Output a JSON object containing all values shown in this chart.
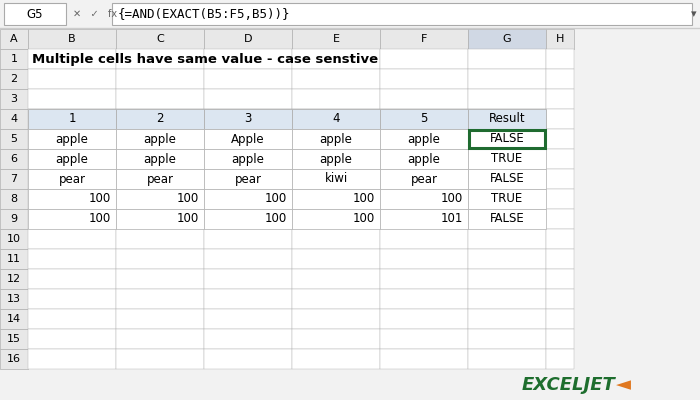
{
  "title": "Multiple cells have same value - case senstive",
  "formula_bar_cell": "G5",
  "formula_bar_formula": "{=AND(EXACT(B5:F5,B5))}",
  "col_headers": [
    "A",
    "B",
    "C",
    "D",
    "E",
    "F",
    "G",
    "H"
  ],
  "row_headers": [
    "1",
    "2",
    "3",
    "4",
    "5",
    "6",
    "7",
    "8",
    "9",
    "10",
    "11",
    "12",
    "13",
    "14",
    "15",
    "16"
  ],
  "table_col_headers": [
    "1",
    "2",
    "3",
    "4",
    "5",
    "Result"
  ],
  "table_data": [
    [
      "apple",
      "apple",
      "Apple",
      "apple",
      "apple",
      "FALSE"
    ],
    [
      "apple",
      "apple",
      "apple",
      "apple",
      "apple",
      "TRUE"
    ],
    [
      "pear",
      "pear",
      "pear",
      "kiwi",
      "pear",
      "FALSE"
    ],
    [
      "100",
      "100",
      "100",
      "100",
      "100",
      "TRUE"
    ],
    [
      "100",
      "100",
      "100",
      "100",
      "101",
      "FALSE"
    ]
  ],
  "numeric_rows": [
    3,
    4
  ],
  "highlighted_cell": [
    0,
    5
  ],
  "header_bg": "#dce6f1",
  "col_header_bg": "#e8e8e8",
  "row_header_bg": "#e8e8e8",
  "highlighted_cell_border": "#1f6b30",
  "highlighted_col_bg": "#d0d8e4",
  "grid_color": "#b0b0b0",
  "text_color": "#000000",
  "outer_bg": "#f2f2f2"
}
